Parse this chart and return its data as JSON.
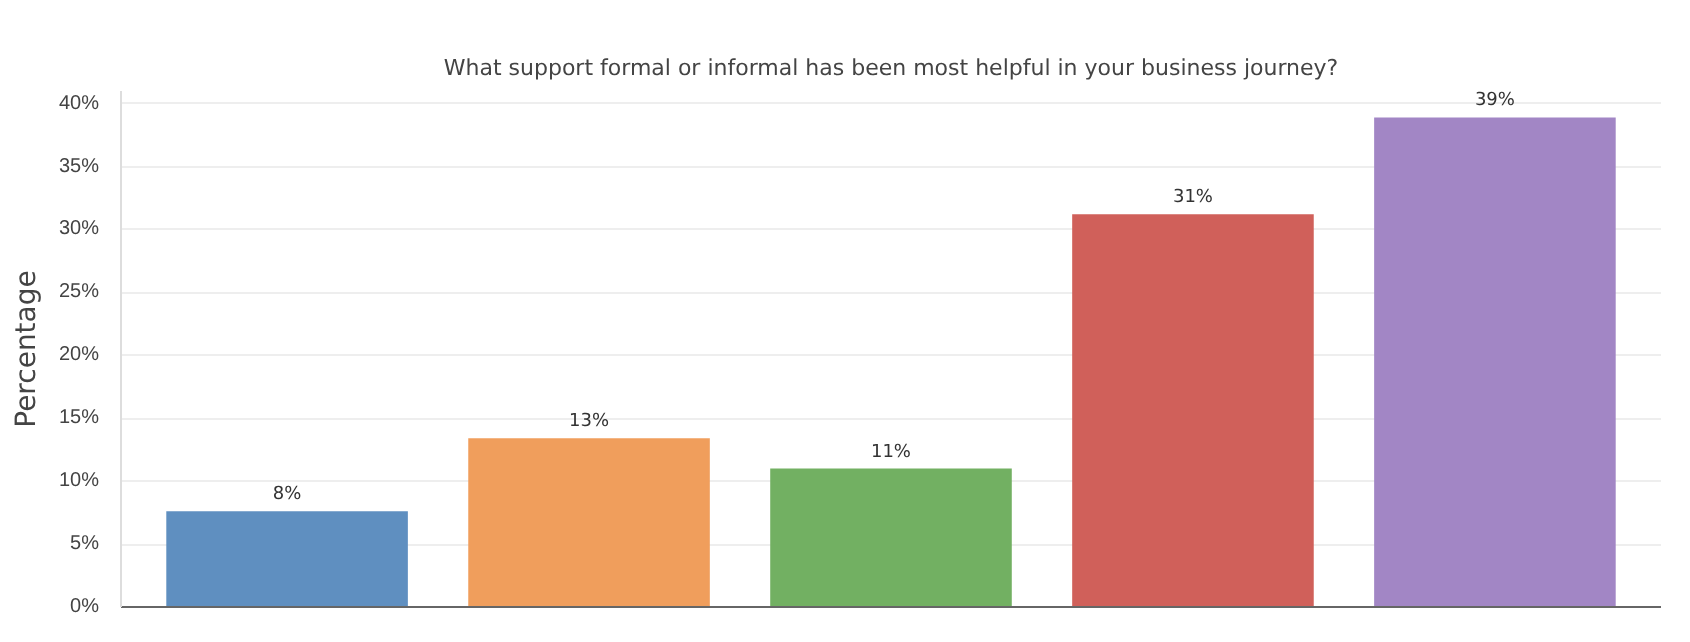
{
  "chart_data": {
    "type": "bar",
    "title": "What support formal or informal has been most helpful in your business journey?",
    "ylabel": "Percentage",
    "categories": [
      null,
      null,
      null,
      null,
      null
    ],
    "values": [
      7.6,
      13.4,
      11.0,
      31.2,
      38.9
    ],
    "value_labels": [
      "8%",
      "13%",
      "11%",
      "31%",
      "39%"
    ],
    "colors": [
      "#5f8fc0",
      "#f09e5c",
      "#72b062",
      "#d0605a",
      "#a286c5"
    ],
    "ylim": [
      0,
      41
    ],
    "yticks": [
      {
        "value": 0,
        "label": "0%"
      },
      {
        "value": 5,
        "label": "5%"
      },
      {
        "value": 10,
        "label": "10%"
      },
      {
        "value": 15,
        "label": "15%"
      },
      {
        "value": 20,
        "label": "20%"
      },
      {
        "value": 25,
        "label": "25%"
      },
      {
        "value": 30,
        "label": "30%"
      },
      {
        "value": 35,
        "label": "35%"
      },
      {
        "value": 40,
        "label": "40%"
      }
    ],
    "grid": "y"
  }
}
